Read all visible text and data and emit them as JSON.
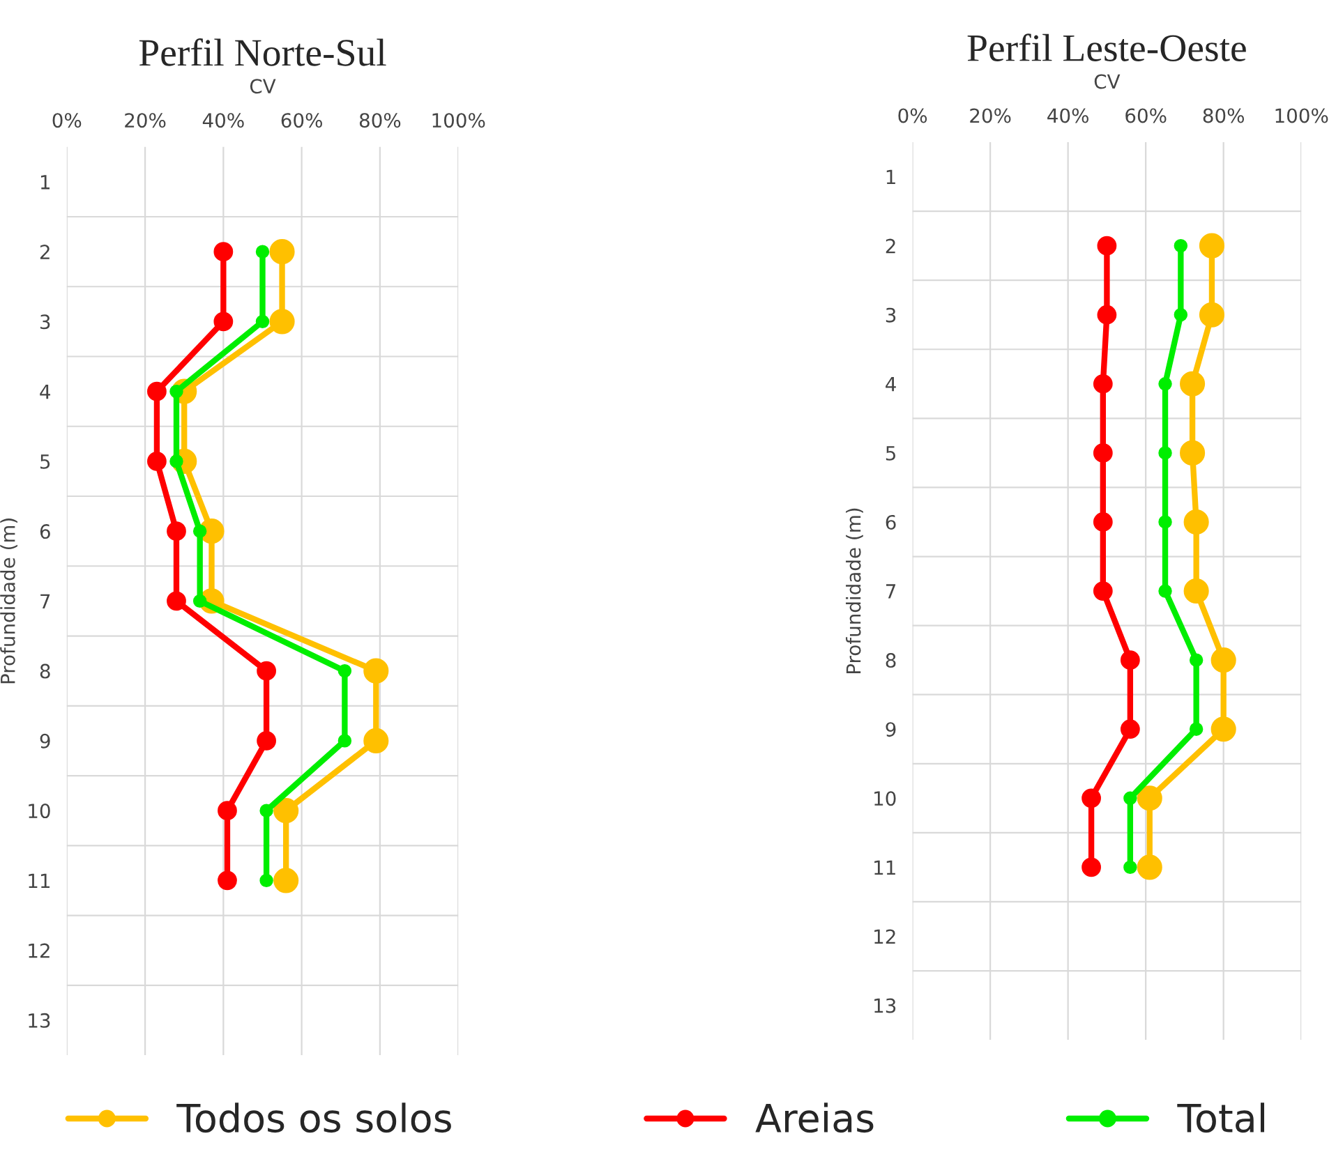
{
  "chart_data": [
    {
      "type": "line",
      "title": "Perfil Norte-Sul",
      "xlabel": "CV",
      "ylabel": "Profundidade (m)",
      "orientation": "horizontal",
      "categories": [
        "1",
        "2",
        "3",
        "4",
        "5",
        "6",
        "7",
        "8",
        "9",
        "10",
        "11",
        "12",
        "13"
      ],
      "xlim": [
        0,
        100
      ],
      "xticks": [
        {
          "value": 0,
          "label": "0%"
        },
        {
          "value": 20,
          "label": "20%"
        },
        {
          "value": 40,
          "label": "40%"
        },
        {
          "value": 60,
          "label": "60%"
        },
        {
          "value": 80,
          "label": "80%"
        },
        {
          "value": 100,
          "label": "100%"
        }
      ],
      "grid": true,
      "marker": "circle",
      "line_style": "solid",
      "legend": "bottom",
      "series": [
        {
          "name": "Todos os solos",
          "color": "#ffc000",
          "values": [
            null,
            55,
            55,
            30,
            30,
            37,
            37,
            79,
            79,
            56,
            56,
            null,
            null
          ]
        },
        {
          "name": "Areias",
          "color": "#ff0000",
          "values": [
            null,
            40,
            40,
            23,
            23,
            28,
            28,
            51,
            51,
            41,
            41,
            null,
            null
          ]
        },
        {
          "name": "Total",
          "color": "#00ee00",
          "values": [
            null,
            50,
            50,
            28,
            28,
            34,
            34,
            71,
            71,
            51,
            51,
            null,
            null
          ]
        }
      ]
    },
    {
      "type": "line",
      "title": "Perfil Leste-Oeste",
      "xlabel": "CV",
      "ylabel": "Profundidade (m)",
      "orientation": "horizontal",
      "categories": [
        "1",
        "2",
        "3",
        "4",
        "5",
        "6",
        "7",
        "8",
        "9",
        "10",
        "11",
        "12",
        "13"
      ],
      "xlim": [
        0,
        100
      ],
      "xticks": [
        {
          "value": 0,
          "label": "0%"
        },
        {
          "value": 20,
          "label": "20%"
        },
        {
          "value": 40,
          "label": "40%"
        },
        {
          "value": 60,
          "label": "60%"
        },
        {
          "value": 80,
          "label": "80%"
        },
        {
          "value": 100,
          "label": "100%"
        }
      ],
      "grid": true,
      "marker": "circle",
      "line_style": "solid",
      "legend": "bottom",
      "series": [
        {
          "name": "Todos os solos",
          "color": "#ffc000",
          "values": [
            null,
            77,
            77,
            72,
            72,
            73,
            73,
            80,
            80,
            61,
            61,
            null,
            null
          ]
        },
        {
          "name": "Areias",
          "color": "#ff0000",
          "values": [
            null,
            50,
            50,
            49,
            49,
            49,
            49,
            56,
            56,
            46,
            46,
            null,
            null
          ]
        },
        {
          "name": "Total",
          "color": "#00ee00",
          "values": [
            null,
            69,
            69,
            65,
            65,
            65,
            65,
            73,
            73,
            56,
            56,
            null,
            null
          ]
        }
      ]
    }
  ]
}
